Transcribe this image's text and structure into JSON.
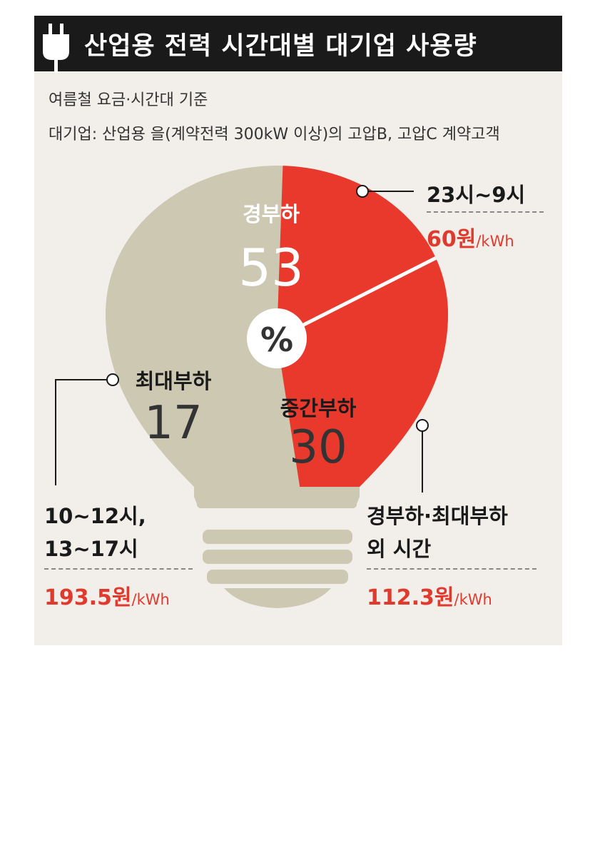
{
  "title": "산업용 전력 시간대별 대기업 사용량",
  "subtitle_1": "여름철 요금·시간대 기준",
  "subtitle_2": "대기업: 산업용 을(계약전력 300kW 이상)의 고압B, 고압C 계약고객",
  "center_label": "%",
  "colors": {
    "light_load": "#e8392c",
    "mid_peak": "#ccc8b2",
    "dark_text": "#333333",
    "price_red": "#e03a2e"
  },
  "icon": "power-plug-icon",
  "chart_data": {
    "type": "pie",
    "unit": "%",
    "slices": [
      {
        "name": "경부하",
        "value": 53,
        "color": "#e8392c",
        "time": "23시~9시",
        "price": "60원",
        "price_unit": "/kWh"
      },
      {
        "name": "중간부하",
        "value": 30,
        "color": "#ccc8b2",
        "time_line1": "경부하·최대부하",
        "time_line2": "외 시간",
        "price": "112.3원",
        "price_unit": "/kWh"
      },
      {
        "name": "최대부하",
        "value": 17,
        "color": "#ccc8b2",
        "time_line1": "10~12시,",
        "time_line2": "13~17시",
        "price": "193.5원",
        "price_unit": "/kWh"
      }
    ]
  }
}
